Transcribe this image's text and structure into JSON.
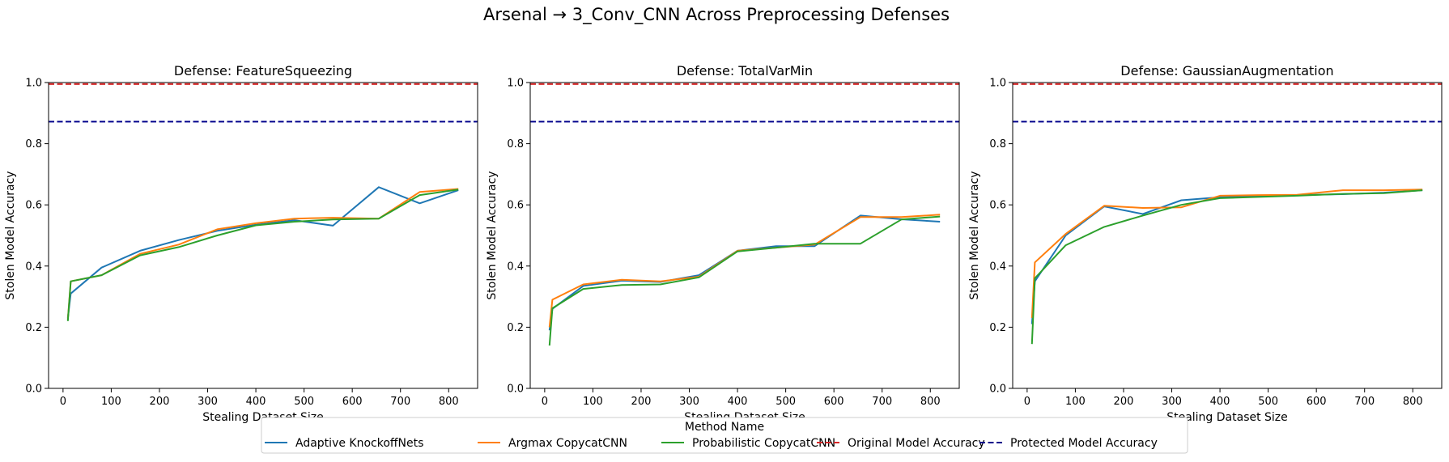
{
  "figure": {
    "suptitle": "Arsenal → 3_Conv_CNN Across Preprocessing Defenses",
    "legend_title": "Method Name"
  },
  "legend": [
    {
      "label": "Adaptive KnockoffNets",
      "color": "#1f77b4",
      "dashed": false
    },
    {
      "label": "Argmax CopycatCNN",
      "color": "#ff7f0e",
      "dashed": false
    },
    {
      "label": "Probabilistic CopycatCNN",
      "color": "#2ca02c",
      "dashed": false
    },
    {
      "label": "Original Model Accuracy",
      "color": "#d62728",
      "dashed": true
    },
    {
      "label": "Protected Model Accuracy",
      "color": "#00008b",
      "dashed": true
    }
  ],
  "chart_data": [
    {
      "type": "line",
      "title": "Defense: FeatureSqueezing",
      "xlabel": "Stealing Dataset Size",
      "ylabel": "Stolen Model Accuracy",
      "xlim": [
        -30,
        860
      ],
      "ylim": [
        0,
        1.0
      ],
      "xticks": [
        0,
        100,
        200,
        300,
        400,
        500,
        600,
        700,
        800
      ],
      "yticks": [
        0.0,
        0.2,
        0.4,
        0.6,
        0.8,
        1.0
      ],
      "x": [
        10,
        16,
        80,
        160,
        240,
        320,
        400,
        480,
        560,
        655,
        740,
        820
      ],
      "hlines": [
        {
          "name": "Original Model Accuracy",
          "value": 0.995,
          "color": "#d62728"
        },
        {
          "name": "Protected Model Accuracy",
          "value": 0.872,
          "color": "#00008b"
        }
      ],
      "series": [
        {
          "name": "Adaptive KnockoffNets",
          "color": "#1f77b4",
          "values": [
            0.23,
            0.31,
            0.395,
            0.45,
            0.485,
            0.515,
            0.535,
            0.55,
            0.532,
            0.658,
            0.605,
            0.648
          ]
        },
        {
          "name": "Argmax CopycatCNN",
          "color": "#ff7f0e",
          "values": [
            0.225,
            0.35,
            0.37,
            0.44,
            0.47,
            0.52,
            0.54,
            0.555,
            0.558,
            0.555,
            0.642,
            0.652
          ]
        },
        {
          "name": "Probabilistic CopycatCNN",
          "color": "#2ca02c",
          "values": [
            0.22,
            0.35,
            0.37,
            0.435,
            0.462,
            0.5,
            0.533,
            0.545,
            0.552,
            0.555,
            0.632,
            0.65
          ]
        }
      ]
    },
    {
      "type": "line",
      "title": "Defense: TotalVarMin",
      "xlabel": "Stealing Dataset Size",
      "ylabel": "Stolen Model Accuracy",
      "xlim": [
        -30,
        860
      ],
      "ylim": [
        0,
        1.0
      ],
      "xticks": [
        0,
        100,
        200,
        300,
        400,
        500,
        600,
        700,
        800
      ],
      "yticks": [
        0.0,
        0.2,
        0.4,
        0.6,
        0.8,
        1.0
      ],
      "x": [
        10,
        16,
        80,
        160,
        240,
        320,
        400,
        480,
        560,
        655,
        740,
        820
      ],
      "hlines": [
        {
          "name": "Original Model Accuracy",
          "value": 0.995,
          "color": "#d62728"
        },
        {
          "name": "Protected Model Accuracy",
          "value": 0.872,
          "color": "#00008b"
        }
      ],
      "series": [
        {
          "name": "Adaptive KnockoffNets",
          "color": "#1f77b4",
          "values": [
            0.19,
            0.26,
            0.335,
            0.352,
            0.348,
            0.37,
            0.45,
            0.465,
            0.465,
            0.565,
            0.553,
            0.545
          ]
        },
        {
          "name": "Argmax CopycatCNN",
          "color": "#ff7f0e",
          "values": [
            0.2,
            0.29,
            0.34,
            0.355,
            0.35,
            0.365,
            0.45,
            0.46,
            0.47,
            0.56,
            0.56,
            0.568
          ]
        },
        {
          "name": "Probabilistic CopycatCNN",
          "color": "#2ca02c",
          "values": [
            0.14,
            0.262,
            0.325,
            0.338,
            0.34,
            0.363,
            0.448,
            0.46,
            0.473,
            0.473,
            0.552,
            0.562
          ]
        }
      ]
    },
    {
      "type": "line",
      "title": "Defense: GaussianAugmentation",
      "xlabel": "Stealing Dataset Size",
      "ylabel": "Stolen Model Accuracy",
      "xlim": [
        -30,
        860
      ],
      "ylim": [
        0,
        1.0
      ],
      "xticks": [
        0,
        100,
        200,
        300,
        400,
        500,
        600,
        700,
        800
      ],
      "yticks": [
        0.0,
        0.2,
        0.4,
        0.6,
        0.8,
        1.0
      ],
      "x": [
        10,
        16,
        80,
        160,
        240,
        320,
        400,
        480,
        560,
        655,
        740,
        820
      ],
      "hlines": [
        {
          "name": "Original Model Accuracy",
          "value": 0.995,
          "color": "#d62728"
        },
        {
          "name": "Protected Model Accuracy",
          "value": 0.872,
          "color": "#00008b"
        }
      ],
      "series": [
        {
          "name": "Adaptive KnockoffNets",
          "color": "#1f77b4",
          "values": [
            0.21,
            0.35,
            0.5,
            0.595,
            0.57,
            0.615,
            0.625,
            0.628,
            0.632,
            0.635,
            0.64,
            0.648
          ]
        },
        {
          "name": "Argmax CopycatCNN",
          "color": "#ff7f0e",
          "values": [
            0.23,
            0.412,
            0.505,
            0.597,
            0.59,
            0.592,
            0.63,
            0.632,
            0.633,
            0.648,
            0.648,
            0.65
          ]
        },
        {
          "name": "Probabilistic CopycatCNN",
          "color": "#2ca02c",
          "values": [
            0.145,
            0.36,
            0.468,
            0.528,
            0.565,
            0.6,
            0.622,
            0.626,
            0.63,
            0.636,
            0.638,
            0.648
          ]
        }
      ]
    }
  ]
}
